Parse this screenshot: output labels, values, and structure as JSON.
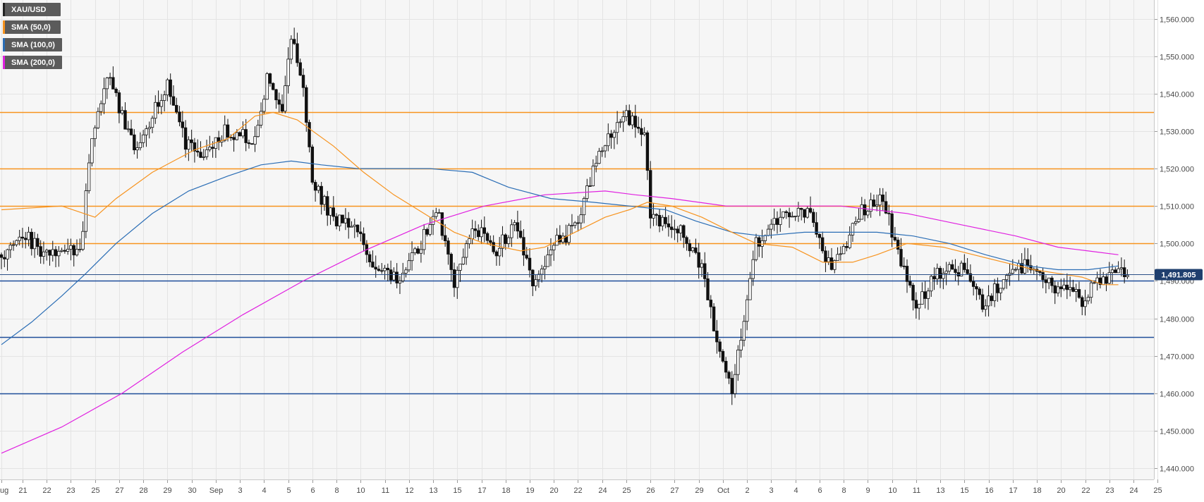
{
  "chart_data": {
    "type": "candlestick",
    "instrument": "XAU/USD",
    "legend": [
      {
        "label": "XAU/USD",
        "color": "#222222"
      },
      {
        "label": "SMA (50,0)",
        "color": "#f7931e"
      },
      {
        "label": "SMA (100,0)",
        "color": "#2a6db5"
      },
      {
        "label": "SMA (200,0)",
        "color": "#e020e0"
      }
    ],
    "y_axis": {
      "min": 1437,
      "max": 1565,
      "ticks": [
        1560,
        1550,
        1540,
        1530,
        1520,
        1510,
        1500,
        1490,
        1480,
        1470,
        1460,
        1450,
        1440
      ],
      "tick_labels": [
        "1,560.000",
        "1,550.000",
        "1,540.000",
        "1,530.000",
        "1,520.000",
        "1,510.000",
        "1,500.000",
        "1,490.000",
        "1,480.000",
        "1,470.000",
        "1,460.000",
        "1,450.000",
        "1,440.000"
      ]
    },
    "x_axis": {
      "labels": [
        "Aug",
        "21",
        "22",
        "23",
        "25",
        "27",
        "28",
        "29",
        "30",
        "Sep",
        "3",
        "4",
        "5",
        "6",
        "8",
        "10",
        "11",
        "12",
        "13",
        "15",
        "17",
        "18",
        "19",
        "20",
        "22",
        "24",
        "25",
        "26",
        "27",
        "29",
        "Oct",
        "2",
        "3",
        "4",
        "6",
        "8",
        "9",
        "10",
        "11",
        "13",
        "15",
        "16",
        "17",
        "18",
        "20",
        "22",
        "23",
        "24",
        "25"
      ],
      "label_index": [
        0,
        7,
        15,
        23,
        31,
        39,
        47,
        55,
        63,
        71,
        79,
        87,
        95,
        103,
        111,
        119,
        127,
        135,
        143,
        151,
        159,
        167,
        175,
        183,
        191,
        199,
        207,
        215,
        223,
        231,
        239,
        247,
        255,
        263,
        271,
        279,
        287,
        295,
        303,
        311,
        319,
        327,
        335,
        343,
        351,
        359,
        367,
        375,
        383
      ]
    },
    "support_resistance": [
      {
        "value": 1535,
        "kind": "resistance",
        "color": "#f7931e"
      },
      {
        "value": 1520,
        "kind": "resistance",
        "color": "#f7931e"
      },
      {
        "value": 1510,
        "kind": "resistance",
        "color": "#f7931e"
      },
      {
        "value": 1500,
        "kind": "resistance",
        "color": "#f7931e"
      },
      {
        "value": 1490,
        "kind": "support",
        "color": "#1f4e9a"
      },
      {
        "value": 1475,
        "kind": "support",
        "color": "#1f4e9a"
      },
      {
        "value": 1460,
        "kind": "support",
        "color": "#1f4e9a"
      }
    ],
    "current_price": {
      "value": 1491.805,
      "label": "1,491.805"
    },
    "price_waypoints": [
      [
        0,
        1497
      ],
      [
        7,
        1503
      ],
      [
        14,
        1497
      ],
      [
        20,
        1498
      ],
      [
        26,
        1497
      ],
      [
        30,
        1528
      ],
      [
        35,
        1545
      ],
      [
        44,
        1526
      ],
      [
        50,
        1534
      ],
      [
        55,
        1543
      ],
      [
        61,
        1527
      ],
      [
        67,
        1524
      ],
      [
        74,
        1530
      ],
      [
        84,
        1528
      ],
      [
        88,
        1544
      ],
      [
        93,
        1535
      ],
      [
        96,
        1555
      ],
      [
        100,
        1541
      ],
      [
        103,
        1517
      ],
      [
        110,
        1506
      ],
      [
        117,
        1506
      ],
      [
        124,
        1492
      ],
      [
        132,
        1491
      ],
      [
        138,
        1498
      ],
      [
        144,
        1510
      ],
      [
        150,
        1488
      ],
      [
        156,
        1505
      ],
      [
        164,
        1498
      ],
      [
        170,
        1505
      ],
      [
        176,
        1490
      ],
      [
        183,
        1500
      ],
      [
        190,
        1504
      ],
      [
        199,
        1526
      ],
      [
        206,
        1535
      ],
      [
        213,
        1530
      ],
      [
        215,
        1507
      ],
      [
        225,
        1504
      ],
      [
        232,
        1494
      ],
      [
        237,
        1473
      ],
      [
        242,
        1461
      ],
      [
        246,
        1481
      ],
      [
        250,
        1500
      ],
      [
        258,
        1508
      ],
      [
        268,
        1508
      ],
      [
        275,
        1492
      ],
      [
        284,
        1508
      ],
      [
        292,
        1512
      ],
      [
        298,
        1495
      ],
      [
        303,
        1483
      ],
      [
        310,
        1492
      ],
      [
        318,
        1493
      ],
      [
        325,
        1483
      ],
      [
        333,
        1492
      ],
      [
        340,
        1494
      ],
      [
        350,
        1488
      ],
      [
        358,
        1485
      ],
      [
        364,
        1490
      ],
      [
        370,
        1493
      ],
      [
        373,
        1492
      ]
    ],
    "sma50_points": [
      [
        0,
        1509
      ],
      [
        20,
        1510
      ],
      [
        31,
        1507
      ],
      [
        38,
        1512
      ],
      [
        50,
        1519
      ],
      [
        64,
        1525
      ],
      [
        75,
        1528
      ],
      [
        84,
        1534
      ],
      [
        90,
        1535
      ],
      [
        98,
        1533
      ],
      [
        110,
        1526
      ],
      [
        120,
        1519
      ],
      [
        130,
        1513
      ],
      [
        140,
        1508
      ],
      [
        150,
        1503
      ],
      [
        160,
        1500
      ],
      [
        172,
        1498
      ],
      [
        180,
        1499
      ],
      [
        190,
        1503
      ],
      [
        200,
        1507
      ],
      [
        208,
        1509
      ],
      [
        214,
        1511
      ],
      [
        222,
        1510
      ],
      [
        232,
        1507
      ],
      [
        242,
        1503
      ],
      [
        250,
        1500
      ],
      [
        262,
        1499
      ],
      [
        272,
        1495
      ],
      [
        282,
        1495
      ],
      [
        290,
        1497
      ],
      [
        300,
        1500
      ],
      [
        312,
        1499
      ],
      [
        322,
        1497
      ],
      [
        332,
        1495
      ],
      [
        342,
        1493
      ],
      [
        350,
        1492
      ],
      [
        358,
        1491
      ],
      [
        365,
        1489
      ],
      [
        370,
        1489
      ]
    ],
    "sma100_points": [
      [
        0,
        1473
      ],
      [
        10,
        1479
      ],
      [
        20,
        1486
      ],
      [
        28,
        1492
      ],
      [
        38,
        1500
      ],
      [
        50,
        1508
      ],
      [
        62,
        1514
      ],
      [
        75,
        1518
      ],
      [
        86,
        1521
      ],
      [
        96,
        1522
      ],
      [
        106,
        1521
      ],
      [
        118,
        1520
      ],
      [
        130,
        1520
      ],
      [
        142,
        1520
      ],
      [
        156,
        1519
      ],
      [
        168,
        1515
      ],
      [
        182,
        1512
      ],
      [
        196,
        1511
      ],
      [
        208,
        1510
      ],
      [
        220,
        1509
      ],
      [
        230,
        1506
      ],
      [
        242,
        1503
      ],
      [
        252,
        1502
      ],
      [
        266,
        1503
      ],
      [
        278,
        1503
      ],
      [
        290,
        1503
      ],
      [
        302,
        1502
      ],
      [
        314,
        1500
      ],
      [
        326,
        1497
      ],
      [
        340,
        1494
      ],
      [
        350,
        1493
      ],
      [
        360,
        1493
      ],
      [
        370,
        1494
      ]
    ],
    "sma200_points": [
      [
        0,
        1444
      ],
      [
        20,
        1451
      ],
      [
        40,
        1460
      ],
      [
        60,
        1471
      ],
      [
        80,
        1481
      ],
      [
        100,
        1490
      ],
      [
        120,
        1498
      ],
      [
        140,
        1505
      ],
      [
        160,
        1510
      ],
      [
        180,
        1513
      ],
      [
        200,
        1514
      ],
      [
        210,
        1513
      ],
      [
        222,
        1512
      ],
      [
        240,
        1510
      ],
      [
        258,
        1510
      ],
      [
        278,
        1510
      ],
      [
        300,
        1508
      ],
      [
        318,
        1505
      ],
      [
        336,
        1502
      ],
      [
        350,
        1499
      ],
      [
        360,
        1498
      ],
      [
        370,
        1497
      ]
    ]
  }
}
